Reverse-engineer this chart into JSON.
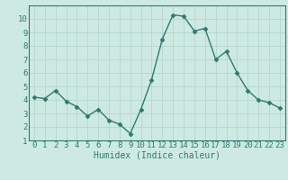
{
  "x": [
    0,
    1,
    2,
    3,
    4,
    5,
    6,
    7,
    8,
    9,
    10,
    11,
    12,
    13,
    14,
    15,
    16,
    17,
    18,
    19,
    20,
    21,
    22,
    23
  ],
  "y": [
    4.2,
    4.1,
    4.7,
    3.9,
    3.5,
    2.8,
    3.3,
    2.5,
    2.2,
    1.5,
    3.3,
    5.5,
    8.5,
    10.3,
    10.2,
    9.1,
    9.3,
    7.0,
    7.6,
    6.0,
    4.7,
    4.0,
    3.8,
    3.4
  ],
  "line_color": "#2d7b6e",
  "marker": "D",
  "marker_size": 2.5,
  "linewidth": 1.0,
  "xlabel": "Humidex (Indice chaleur)",
  "xlabel_fontsize": 7,
  "bg_color": "#cdeae2",
  "grid_color": "#b8d8d0",
  "tick_color": "#2d7b6e",
  "xlim": [
    -0.5,
    23.5
  ],
  "ylim": [
    1,
    11
  ],
  "yticks": [
    1,
    2,
    3,
    4,
    5,
    6,
    7,
    8,
    9,
    10
  ],
  "xticks": [
    0,
    1,
    2,
    3,
    4,
    5,
    6,
    7,
    8,
    9,
    10,
    11,
    12,
    13,
    14,
    15,
    16,
    17,
    18,
    19,
    20,
    21,
    22,
    23
  ],
  "tick_fontsize": 6.5
}
